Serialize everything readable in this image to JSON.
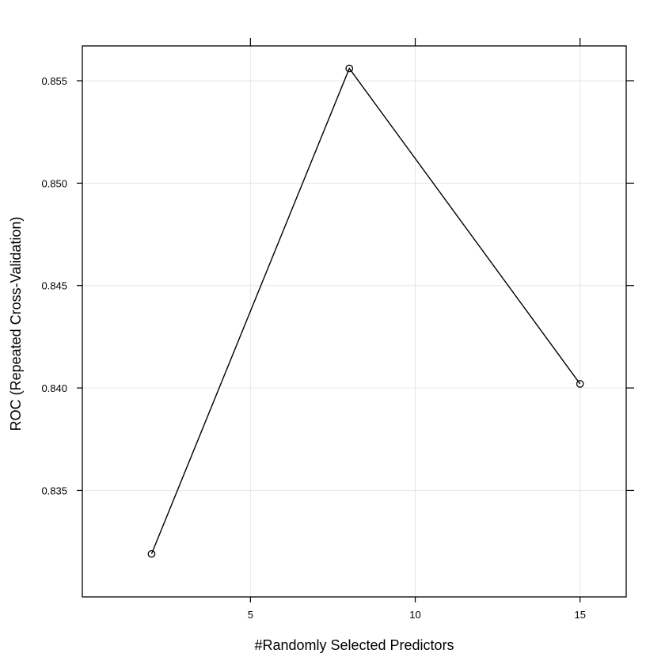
{
  "chart_data": {
    "type": "line",
    "xlabel": "#Randomly Selected Predictors",
    "ylabel": "ROC (Repeated Cross-Validation)",
    "x": [
      2,
      8,
      15
    ],
    "series": [
      {
        "values": [
          0.8319,
          0.8556,
          0.8402
        ]
      }
    ],
    "xlim": [
      -0.1,
      16.4
    ],
    "ylim": [
      0.8298,
      0.8567
    ],
    "xticks": [
      5,
      10,
      15
    ],
    "xtick_labels": [
      "5",
      "10",
      "15"
    ],
    "yticks": [
      0.835,
      0.84,
      0.845,
      0.85,
      0.855
    ],
    "ytick_labels": [
      "0.835",
      "0.840",
      "0.845",
      "0.850",
      "0.855"
    ],
    "grid": true,
    "marker": "open-circle",
    "colors": {
      "line": "#000000",
      "grid": "#e6e6e6",
      "frame": "#000000"
    }
  }
}
